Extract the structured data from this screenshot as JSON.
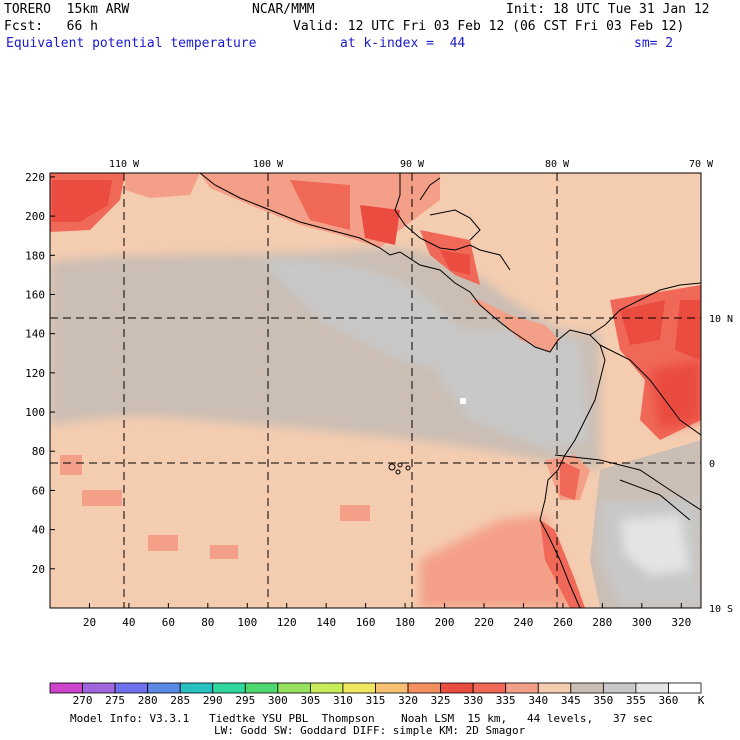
{
  "header": {
    "model": "TORERO  15km ARW",
    "center": "NCAR/MMM",
    "init": "Init: 18 UTC Tue 31 Jan 12",
    "fcst": "Fcst:   66 h",
    "valid": "Valid: 12 UTC Fri 03 Feb 12 (06 CST Fri 03 Feb 12)",
    "field": "Equivalent potential temperature",
    "level": "at k-index =  44",
    "smooth": "sm= 2"
  },
  "map": {
    "lon_labels": [
      "110 W",
      "100 W",
      "90 W",
      "80 W",
      "70 W"
    ],
    "lat_labels": [
      "10 N",
      "0",
      "10 S"
    ],
    "grid_x_labels": [
      "20",
      "40",
      "60",
      "80",
      "100",
      "120",
      "140",
      "160",
      "180",
      "200",
      "220",
      "240",
      "260",
      "280",
      "300",
      "320"
    ],
    "grid_y_labels": [
      "20",
      "40",
      "60",
      "80",
      "100",
      "120",
      "140",
      "160",
      "180",
      "200",
      "220"
    ]
  },
  "legend": {
    "values": [
      "270",
      "275",
      "280",
      "285",
      "290",
      "295",
      "300",
      "305",
      "310",
      "315",
      "320",
      "325",
      "330",
      "335",
      "340",
      "345",
      "350",
      "355",
      "360"
    ],
    "unit": "K",
    "colors": [
      "#cc44cc",
      "#a066dd",
      "#7070ee",
      "#5a8ae6",
      "#28c0c0",
      "#30d8a0",
      "#50d870",
      "#98e060",
      "#c8ec5a",
      "#f2e860",
      "#f8c070",
      "#f49060",
      "#ea4c40",
      "#f06858",
      "#f4a088",
      "#f4ccb0",
      "#cbbeb4",
      "#c8c8c8",
      "#e4e4e4",
      "#ffffff"
    ]
  },
  "footer": {
    "line1": "Model Info: V3.3.1   Tiedtke YSU PBL  Thompson    Noah LSM  15 km,   44 levels,   37 sec",
    "line2": "LW: Godd SW: Goddard DIFF: simple KM: 2D Smagor"
  }
}
